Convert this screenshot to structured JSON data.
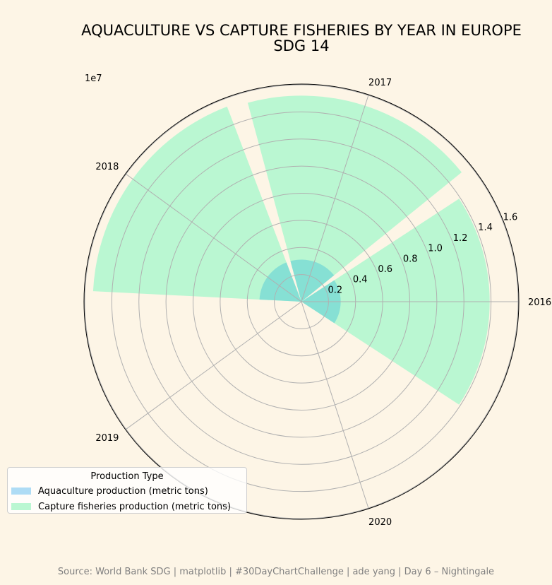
{
  "title_line1": "AQUACULTURE VS CAPTURE FISHERIES BY YEAR IN EUROPE",
  "title_line2": "SDG 14",
  "scale_label": "1e7",
  "source_note": "Source: World Bank SDG | matplotlib | #30DayChartChallenge | ade yang | Day 6 – Nightingale",
  "colors": {
    "background": "#fdf5e6",
    "aquaculture": "#aedcf5",
    "capture": "#baf7d2",
    "overlap": "#86e0d4",
    "grid": "#b0b0b0"
  },
  "legend": {
    "title": "Production Type",
    "items": [
      {
        "label": "Aquaculture production (metric tons)",
        "color": "#aedcf5"
      },
      {
        "label": "Capture fisheries production (metric tons)",
        "color": "#baf7d2"
      }
    ]
  },
  "chart_data": {
    "type": "polar-bar",
    "categories": [
      "2016",
      "2017",
      "2018",
      "2019",
      "2020"
    ],
    "radial_ticks": [
      "0.2",
      "0.4",
      "0.6",
      "0.8",
      "1.0",
      "1.2",
      "1.4",
      "1.6"
    ],
    "radial_tick_values": [
      0.2,
      0.4,
      0.6,
      0.8,
      1.0,
      1.2,
      1.4,
      1.6
    ],
    "rlim": [
      0,
      1.6
    ],
    "unit_multiplier": "1e7",
    "grid": true,
    "legend_position": "lower-left",
    "series": [
      {
        "name": "Aquaculture production (metric tons)",
        "values": [
          0.29,
          0.31,
          0.31,
          0.0,
          0.0
        ]
      },
      {
        "name": "Capture fisheries production (metric tons)",
        "values": [
          1.39,
          1.52,
          1.54,
          0.0,
          0.0
        ]
      }
    ]
  }
}
